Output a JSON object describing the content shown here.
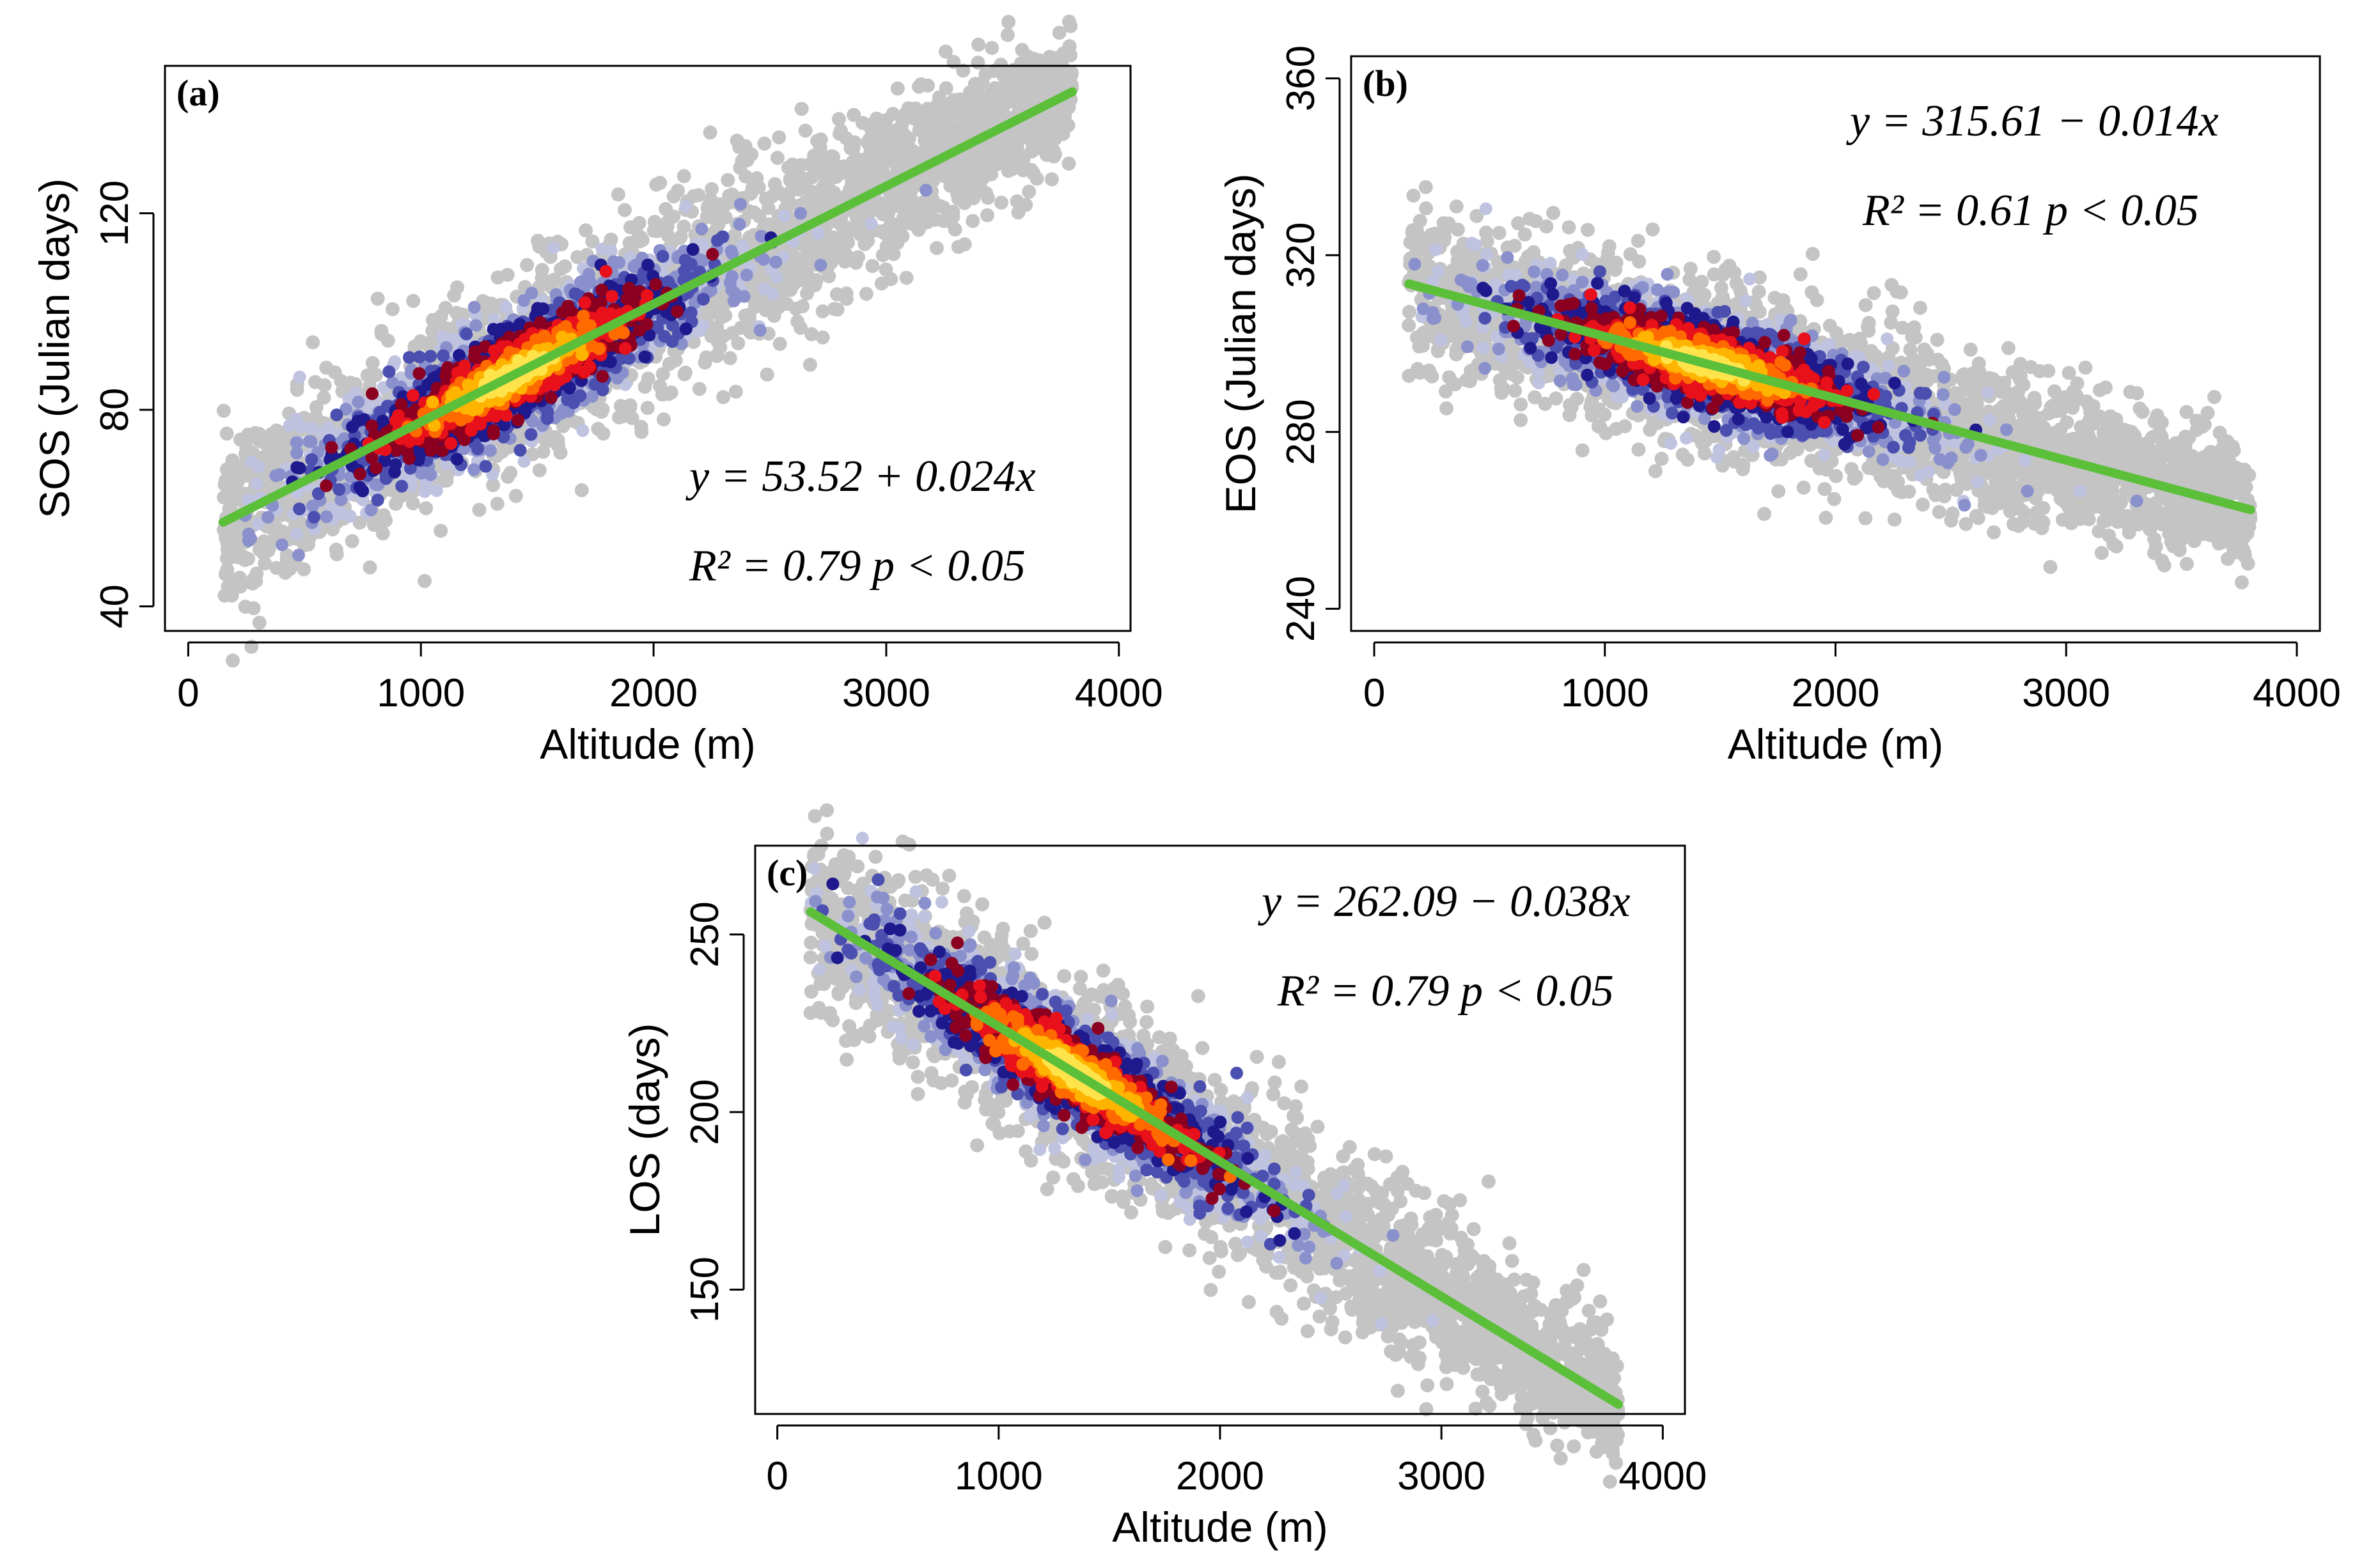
{
  "chart_data": [
    {
      "type": "scatter",
      "panel_label": "(a)",
      "xlabel": "Altitude (m)",
      "ylabel": "SOS (Julian days)",
      "xlim": [
        -100,
        4050
      ],
      "ylim": [
        35,
        150
      ],
      "xticks": [
        0,
        1000,
        2000,
        3000,
        4000
      ],
      "yticks": [
        40,
        80,
        120
      ],
      "fit": {
        "intercept": 53.52,
        "slope": 0.024,
        "x_range": [
          150,
          3800
        ]
      },
      "equation": "y = 53.52 + 0.024x",
      "r2_text": "R² = 0.79  p < 0.05",
      "cloud": {
        "x_range": [
          150,
          3800
        ],
        "halfwidth": 19,
        "core_center": 1400,
        "core_spread": 620
      }
    },
    {
      "type": "scatter",
      "panel_label": "(b)",
      "xlabel": "Altitude (m)",
      "ylabel": "EOS (Julian days)",
      "xlim": [
        -100,
        4100
      ],
      "ylim": [
        235,
        365
      ],
      "xticks": [
        0,
        1000,
        2000,
        3000,
        4000
      ],
      "yticks": [
        240,
        280,
        320,
        360
      ],
      "fit": {
        "intercept": 315.61,
        "slope": -0.014,
        "x_range": [
          150,
          3800
        ]
      },
      "equation": "y = 315.61 − 0.014x",
      "r2_text": "R² = 0.61  p < 0.05",
      "cloud": {
        "x_range": [
          150,
          3800
        ],
        "halfwidth": 19,
        "core_center": 1450,
        "core_spread": 650
      }
    },
    {
      "type": "scatter",
      "panel_label": "(c)",
      "xlabel": "Altitude (m)",
      "ylabel": "LOS (days)",
      "xlim": [
        -100,
        4100
      ],
      "ylim": [
        115,
        275
      ],
      "xticks": [
        0,
        1000,
        2000,
        3000,
        4000
      ],
      "yticks": [
        150,
        200,
        250
      ],
      "fit": {
        "intercept": 262.09,
        "slope": -0.038,
        "x_range": [
          150,
          3800
        ]
      },
      "equation": "y = 262.09 − 0.038x",
      "r2_text": "R² = 0.79  p < 0.05",
      "cloud": {
        "x_range": [
          150,
          3800
        ],
        "halfwidth": 26,
        "core_center": 1350,
        "core_spread": 650
      }
    }
  ],
  "colors": {
    "cloud_grey": "#c4c4c4",
    "density_ramp": [
      "#bfc3e0",
      "#8a90cc",
      "#4b4fb0",
      "#1e1a8e",
      "#8b0020",
      "#e8101a",
      "#ff6a00",
      "#ffb400",
      "#ffe34a"
    ],
    "fit_line": "#5cbf3a"
  }
}
